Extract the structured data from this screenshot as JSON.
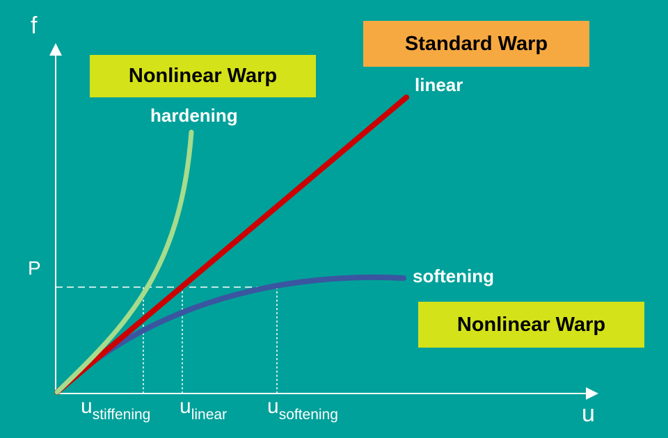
{
  "boxes": {
    "standard": "Standard Warp",
    "nonlinear_top": "Nonlinear Warp",
    "nonlinear_bottom": "Nonlinear Warp"
  },
  "axes": {
    "y_label": "f",
    "x_label": "u",
    "p_label": "P"
  },
  "curves": {
    "linear": "linear",
    "hardening": "hardening",
    "softening": "softening"
  },
  "ticks": [
    {
      "base": "u",
      "sub": "stiffening"
    },
    {
      "base": "u",
      "sub": "linear"
    },
    {
      "base": "u",
      "sub": "softening"
    }
  ],
  "colors": {
    "background": "#00A19A",
    "linear": "#CC0000",
    "hardening": "#A6DC8C",
    "softening": "#3A56A0",
    "standard_box": "#F7A941",
    "nonlinear_box": "#D4E21A"
  }
}
